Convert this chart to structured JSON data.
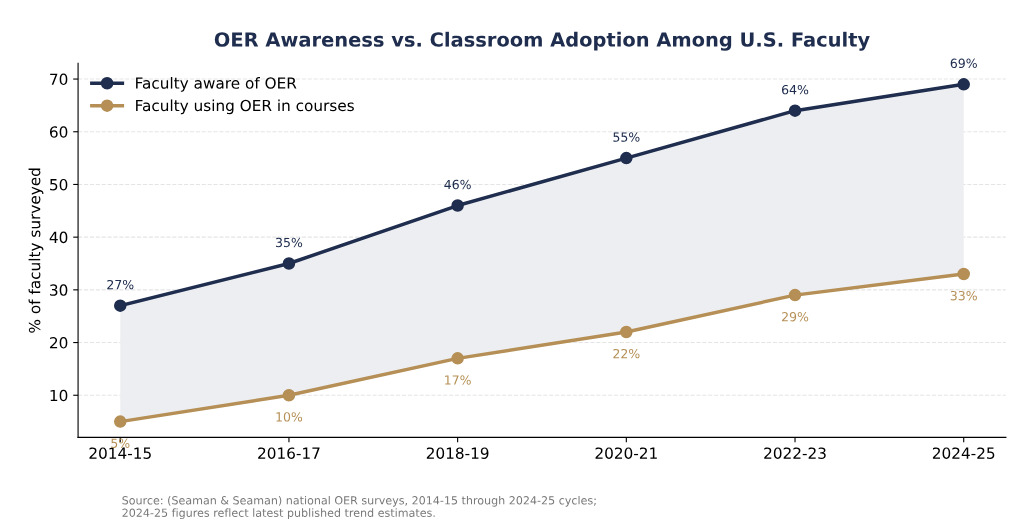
{
  "chart_data": {
    "type": "line",
    "title": "OER Awareness vs. Classroom Adoption Among U.S. Faculty",
    "ylabel": "% of faculty surveyed",
    "categories": [
      "2014-15",
      "2016-17",
      "2018-19",
      "2020-21",
      "2022-23",
      "2024-25"
    ],
    "series": [
      {
        "name": "Faculty aware of OER",
        "color": "#1f2d4e",
        "values": [
          27,
          35,
          46,
          55,
          64,
          69
        ],
        "value_labels": [
          "27%",
          "35%",
          "46%",
          "55%",
          "64%",
          "69%"
        ],
        "lower": [
          5,
          10,
          17,
          22,
          29,
          33
        ],
        "upper": [
          27,
          35,
          46,
          55,
          64,
          69
        ]
      },
      {
        "name": "Faculty using OER in courses",
        "color": "#b58f55",
        "values": [
          5,
          10,
          17,
          22,
          29,
          33
        ],
        "value_labels": [
          "5%",
          "10%",
          "17%",
          "22%",
          "29%",
          "33%"
        ]
      }
    ],
    "ylim": [
      2,
      73
    ],
    "yticks": [
      10,
      20,
      30,
      40,
      50,
      60,
      70
    ],
    "grid": "y",
    "legend": "top left",
    "marker": "circle",
    "line_style": "solid",
    "annotations": [
      "Source: (Seaman & Seaman) national OER surveys, 2014-15 through 2024-25 cycles;\n2024-25 figures reflect latest published trend estimates."
    ]
  }
}
